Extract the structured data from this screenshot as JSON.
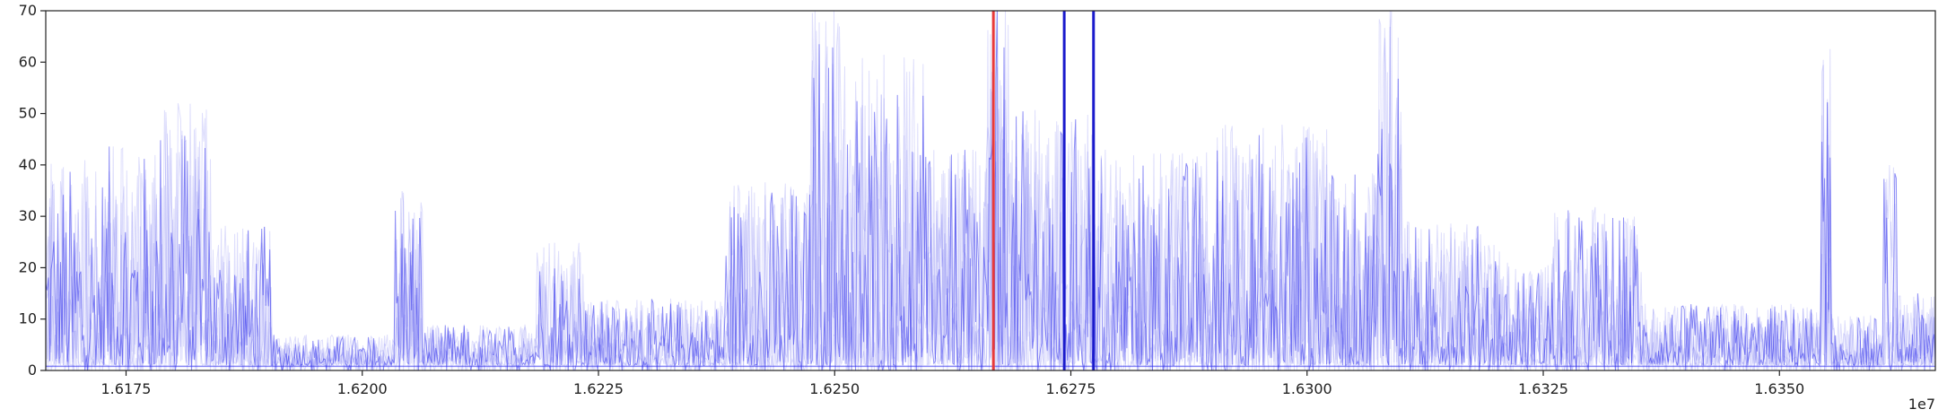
{
  "chart_data": {
    "type": "line",
    "title": "",
    "xlabel": "",
    "ylabel": "",
    "x_offset_label": "1e7",
    "xlim": [
      16166500,
      16366500
    ],
    "ylim": [
      0,
      70
    ],
    "x_ticks": [
      16175000,
      16200000,
      16225000,
      16250000,
      16275000,
      16300000,
      16325000,
      16350000
    ],
    "x_tick_labels": [
      "1.6175",
      "1.6200",
      "1.6225",
      "1.6250",
      "1.6275",
      "1.6300",
      "1.6325",
      "1.6350"
    ],
    "y_ticks": [
      0,
      10,
      20,
      30,
      40,
      50,
      60,
      70
    ],
    "y_tick_labels": [
      "0",
      "10",
      "20",
      "30",
      "40",
      "50",
      "60",
      "70"
    ],
    "grid": false,
    "legend": "none",
    "series_color": "#3333ee",
    "series_overlay_count": 6,
    "vertical_lines": [
      {
        "x": 16266800,
        "color": "#e83a3a"
      },
      {
        "x": 16274300,
        "color": "#1a1acc"
      },
      {
        "x": 16277400,
        "color": "#1a1acc"
      }
    ],
    "activity_profile": [
      {
        "x_range": [
          16166500,
          16172500
        ],
        "peak": 40
      },
      {
        "x_range": [
          16172500,
          16178500
        ],
        "peak": 43
      },
      {
        "x_range": [
          16178500,
          16184000
        ],
        "peak": 52
      },
      {
        "x_range": [
          16184000,
          16190500
        ],
        "peak": 28
      },
      {
        "x_range": [
          16190500,
          16203500
        ],
        "peak": 6
      },
      {
        "x_range": [
          16203500,
          16206500
        ],
        "peak": 37
      },
      {
        "x_range": [
          16206500,
          16218500
        ],
        "peak": 8
      },
      {
        "x_range": [
          16218500,
          16223500
        ],
        "peak": 24
      },
      {
        "x_range": [
          16223500,
          16238500
        ],
        "peak": 13
      },
      {
        "x_range": [
          16238500,
          16247500
        ],
        "peak": 36
      },
      {
        "x_range": [
          16247500,
          16251500
        ],
        "peak": 70
      },
      {
        "x_range": [
          16251500,
          16259500
        ],
        "peak": 61
      },
      {
        "x_range": [
          16259500,
          16266000
        ],
        "peak": 42
      },
      {
        "x_range": [
          16266000,
          16268500
        ],
        "peak": 70
      },
      {
        "x_range": [
          16268500,
          16278000
        ],
        "peak": 50
      },
      {
        "x_range": [
          16278000,
          16289500
        ],
        "peak": 42
      },
      {
        "x_range": [
          16289500,
          16302500
        ],
        "peak": 47
      },
      {
        "x_range": [
          16302500,
          16307500
        ],
        "peak": 38
      },
      {
        "x_range": [
          16307500,
          16310000
        ],
        "peak": 70
      },
      {
        "x_range": [
          16310000,
          16320500
        ],
        "peak": 28
      },
      {
        "x_range": [
          16320500,
          16326000
        ],
        "peak": 20
      },
      {
        "x_range": [
          16326000,
          16335500
        ],
        "peak": 31
      },
      {
        "x_range": [
          16335500,
          16354500
        ],
        "peak": 12
      },
      {
        "x_range": [
          16354500,
          16355500
        ],
        "peak": 62
      },
      {
        "x_range": [
          16355500,
          16361000
        ],
        "peak": 10
      },
      {
        "x_range": [
          16361000,
          16362500
        ],
        "peak": 40
      },
      {
        "x_range": [
          16362500,
          16366500
        ],
        "peak": 14
      }
    ]
  }
}
